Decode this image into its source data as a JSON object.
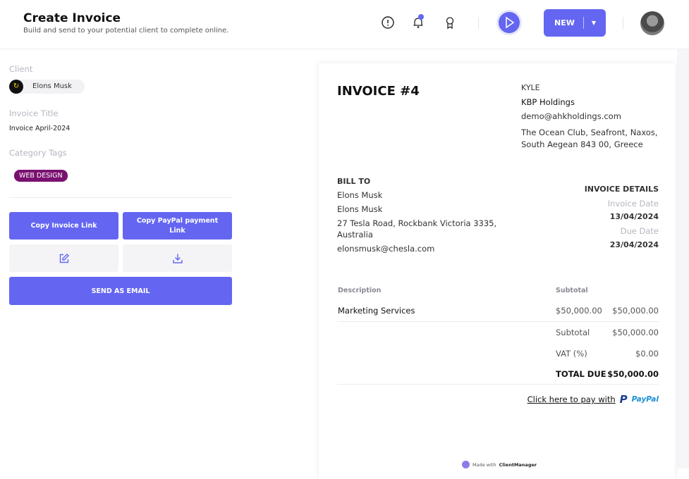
{
  "header": {
    "title": "Create Invoice",
    "subtitle": "Build and send to your potential client to complete online.",
    "new_label": "NEW",
    "icons": [
      "alert-circle-icon",
      "bell-icon",
      "award-icon",
      "play-icon",
      "caret-down-icon"
    ]
  },
  "form": {
    "client_label": "Client",
    "client_name": "Elons Musk",
    "invoice_title_label": "Invoice Title",
    "invoice_title": "Invoice April-2024",
    "category_label": "Category Tags",
    "tag": "WEB DESIGN",
    "tag_color": "#7a1070"
  },
  "actions": {
    "copy_invoice": "Copy Invoice Link",
    "copy_paypal": "Copy PayPal payment Link",
    "send_email": "SEND AS EMAIL",
    "accent": "#6466f1"
  },
  "invoice": {
    "title": "INVOICE #4",
    "from": {
      "name": "KYLE",
      "company": "KBP Holdings",
      "email": "demo@ahkholdings.com",
      "address": "The Ocean Club, Seafront, Naxos,",
      "address2": "South Aegean 843 00, Greece"
    },
    "bill_to": {
      "label": "BILL TO",
      "name": "Elons Musk",
      "company": "Elons Musk",
      "address": "27 Tesla Road, Rockbank Victoria 3335,",
      "address2": "Australia",
      "email": "elonsmusk@chesla.com"
    },
    "details": {
      "label": "INVOICE DETAILS",
      "invoice_date_label": "Invoice Date",
      "invoice_date": "13/04/2024",
      "due_date_label": "Due Date",
      "due_date": "23/04/2024"
    },
    "table": {
      "col_description": "Description",
      "col_subtotal": "Subtotal",
      "rows": [
        {
          "description": "Marketing Services",
          "price": "$50,000.00",
          "subtotal": "$50,000.00"
        }
      ]
    },
    "totals": {
      "subtotal_label": "Subtotal",
      "subtotal": "$50,000.00",
      "vat_label": "VAT (%)",
      "vat": "$0.00",
      "total_label": "TOTAL DUE",
      "total": "$50,000.00"
    },
    "pay_link": "Click here to pay with",
    "paypal": "PayPal",
    "footer_made": "Made with",
    "footer_brand": "ClientManager"
  }
}
